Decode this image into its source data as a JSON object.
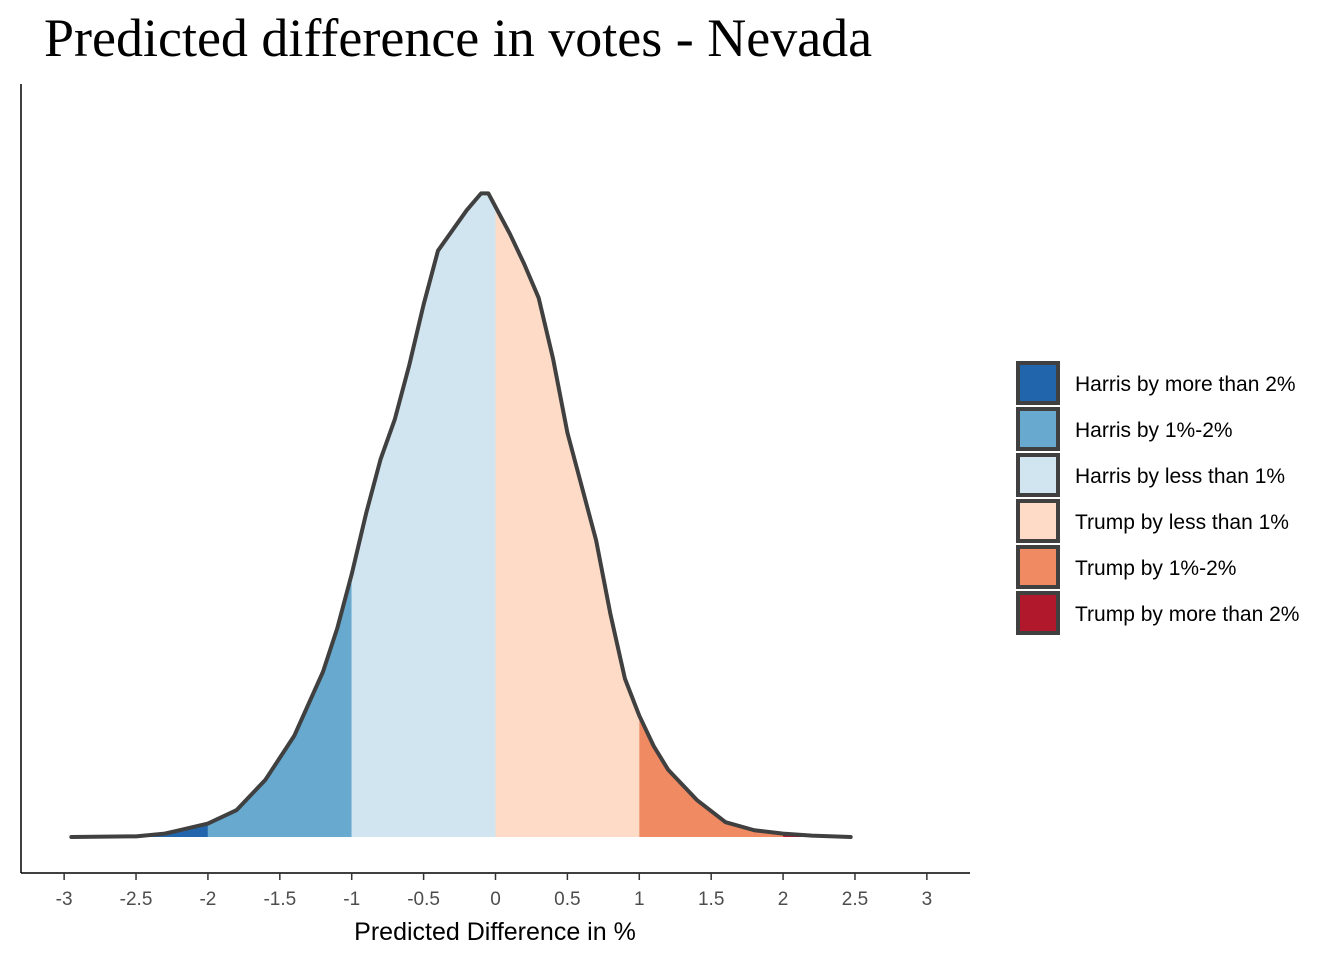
{
  "chart_data": {
    "type": "area",
    "title": "Predicted difference in votes - Nevada",
    "xlabel": "Predicted Difference in %",
    "ylabel": "",
    "xlim": [
      -3.3,
      3.3
    ],
    "ylim": [
      0,
      0.96
    ],
    "x_ticks": [
      -3,
      -2.5,
      -2,
      -1.5,
      -1,
      -0.5,
      0,
      0.5,
      1,
      1.5,
      2,
      2.5,
      3
    ],
    "x_tick_labels": [
      "-3",
      "-2.5",
      "-2",
      "-1.5",
      "-1",
      "-0.5",
      "0",
      "0.5",
      "1",
      "1.5",
      "2",
      "2.5",
      "3"
    ],
    "grid": false,
    "legend_position": "right",
    "density": {
      "x": [
        -2.95,
        -2.5,
        -2.3,
        -2.2,
        -2.0,
        -1.8,
        -1.6,
        -1.4,
        -1.2,
        -1.1,
        -1.0,
        -0.9,
        -0.8,
        -0.7,
        -0.6,
        -0.5,
        -0.4,
        -0.3,
        -0.2,
        -0.1,
        -0.05,
        0.0,
        0.1,
        0.2,
        0.3,
        0.4,
        0.5,
        0.6,
        0.7,
        0.8,
        0.9,
        1.0,
        1.1,
        1.2,
        1.4,
        1.6,
        1.8,
        2.0,
        2.2,
        2.47
      ],
      "y": [
        0.0,
        0.001,
        0.005,
        0.01,
        0.02,
        0.04,
        0.085,
        0.15,
        0.245,
        0.31,
        0.39,
        0.48,
        0.56,
        0.62,
        0.7,
        0.79,
        0.87,
        0.9,
        0.93,
        0.955,
        0.955,
        0.935,
        0.895,
        0.85,
        0.8,
        0.71,
        0.6,
        0.52,
        0.44,
        0.33,
        0.235,
        0.18,
        0.135,
        0.1,
        0.055,
        0.022,
        0.01,
        0.005,
        0.002,
        0.0
      ]
    },
    "series": [
      {
        "name": "Harris by more than 2%",
        "color": "#2166ac",
        "range": [
          -3.0,
          -2.0
        ]
      },
      {
        "name": "Harris by 1%-2%",
        "color": "#67a9cf",
        "range": [
          -2.0,
          -1.0
        ]
      },
      {
        "name": "Harris by less than 1%",
        "color": "#d1e5f0",
        "range": [
          -1.0,
          0.0
        ]
      },
      {
        "name": "Trump by less than 1%",
        "color": "#fddbc7",
        "range": [
          0.0,
          1.0
        ]
      },
      {
        "name": "Trump by 1%-2%",
        "color": "#ef8a62",
        "range": [
          1.0,
          2.0
        ]
      },
      {
        "name": "Trump by more than 2%",
        "color": "#b2182b",
        "range": [
          2.0,
          3.0
        ]
      }
    ],
    "outline_color": "#404040"
  }
}
